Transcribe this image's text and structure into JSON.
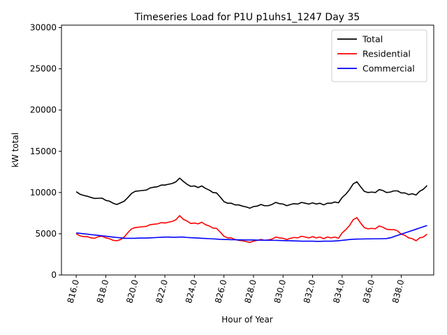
{
  "chart_data": {
    "type": "line",
    "title": "Timeseries Load for P1U p1uhs1_1247  Day 35",
    "xlabel": "Hour of Year",
    "ylabel": "kW total",
    "xlim": [
      815.0,
      840.2
    ],
    "ylim": [
      0,
      30300
    ],
    "xticks": [
      816.0,
      818.0,
      820.0,
      822.0,
      824.0,
      826.0,
      828.0,
      830.0,
      832.0,
      834.0,
      836.0,
      838.0
    ],
    "xtick_labels": [
      "816.0",
      "818.0",
      "820.0",
      "822.0",
      "824.0",
      "826.0",
      "828.0",
      "830.0",
      "832.0",
      "834.0",
      "836.0",
      "838.0"
    ],
    "yticks": [
      0,
      5000,
      10000,
      15000,
      20000,
      25000,
      30000
    ],
    "ytick_labels": [
      "0",
      "5000",
      "10000",
      "15000",
      "20000",
      "25000",
      "30000"
    ],
    "legend_position": "top-right",
    "x_start": 816.0,
    "x_step": 0.25,
    "series": [
      {
        "name": "Total",
        "color": "#000000",
        "values": [
          10100,
          9800,
          9650,
          9550,
          9400,
          9280,
          9300,
          9320,
          9050,
          8950,
          8700,
          8550,
          8750,
          8950,
          9400,
          9900,
          10150,
          10200,
          10250,
          10300,
          10550,
          10650,
          10700,
          10900,
          10900,
          11000,
          11100,
          11300,
          11750,
          11350,
          11000,
          10750,
          10800,
          10600,
          10800,
          10500,
          10300,
          10000,
          9950,
          9450,
          8900,
          8700,
          8700,
          8500,
          8500,
          8350,
          8250,
          8100,
          8300,
          8350,
          8550,
          8400,
          8400,
          8550,
          8800,
          8650,
          8600,
          8400,
          8550,
          8650,
          8600,
          8800,
          8700,
          8600,
          8750,
          8600,
          8700,
          8500,
          8700,
          8700,
          8850,
          8750,
          9400,
          9800,
          10350,
          11050,
          11300,
          10700,
          10150,
          10000,
          10050,
          10000,
          10350,
          10250,
          10000,
          10050,
          10200,
          10200,
          9950,
          9950,
          9750,
          9850,
          9700,
          10150,
          10400,
          10850
        ]
      },
      {
        "name": "Residential",
        "color": "#ff0000",
        "values": [
          5000,
          4750,
          4650,
          4650,
          4500,
          4450,
          4650,
          4700,
          4500,
          4400,
          4200,
          4150,
          4300,
          4600,
          5150,
          5600,
          5750,
          5800,
          5850,
          5900,
          6100,
          6150,
          6200,
          6350,
          6300,
          6400,
          6500,
          6700,
          7200,
          6750,
          6550,
          6250,
          6300,
          6200,
          6400,
          6100,
          5950,
          5700,
          5650,
          5200,
          4700,
          4500,
          4500,
          4300,
          4200,
          4150,
          4050,
          3950,
          4100,
          4200,
          4300,
          4200,
          4250,
          4350,
          4600,
          4500,
          4450,
          4300,
          4450,
          4550,
          4500,
          4700,
          4600,
          4500,
          4650,
          4500,
          4600,
          4400,
          4600,
          4500,
          4600,
          4450,
          5100,
          5500,
          6000,
          6700,
          6950,
          6300,
          5750,
          5600,
          5650,
          5600,
          5950,
          5800,
          5550,
          5500,
          5500,
          5350,
          4950,
          4800,
          4500,
          4400,
          4150,
          4500,
          4600,
          4950
        ]
      },
      {
        "name": "Commercial",
        "color": "#0000ff",
        "values": [
          5100,
          5050,
          5000,
          4950,
          4900,
          4850,
          4800,
          4750,
          4700,
          4650,
          4600,
          4550,
          4500,
          4450,
          4450,
          4450,
          4450,
          4480,
          4480,
          4480,
          4500,
          4520,
          4550,
          4580,
          4600,
          4600,
          4580,
          4580,
          4600,
          4600,
          4550,
          4520,
          4500,
          4480,
          4450,
          4430,
          4400,
          4380,
          4350,
          4320,
          4300,
          4300,
          4280,
          4280,
          4260,
          4260,
          4250,
          4250,
          4250,
          4230,
          4230,
          4220,
          4220,
          4200,
          4200,
          4180,
          4170,
          4150,
          4150,
          4130,
          4120,
          4100,
          4100,
          4100,
          4100,
          4080,
          4080,
          4100,
          4100,
          4100,
          4120,
          4150,
          4200,
          4250,
          4300,
          4330,
          4350,
          4360,
          4370,
          4380,
          4380,
          4390,
          4390,
          4400,
          4420,
          4500,
          4650,
          4800,
          4950,
          5100,
          5250,
          5400,
          5550,
          5700,
          5850,
          6000
        ]
      }
    ]
  }
}
